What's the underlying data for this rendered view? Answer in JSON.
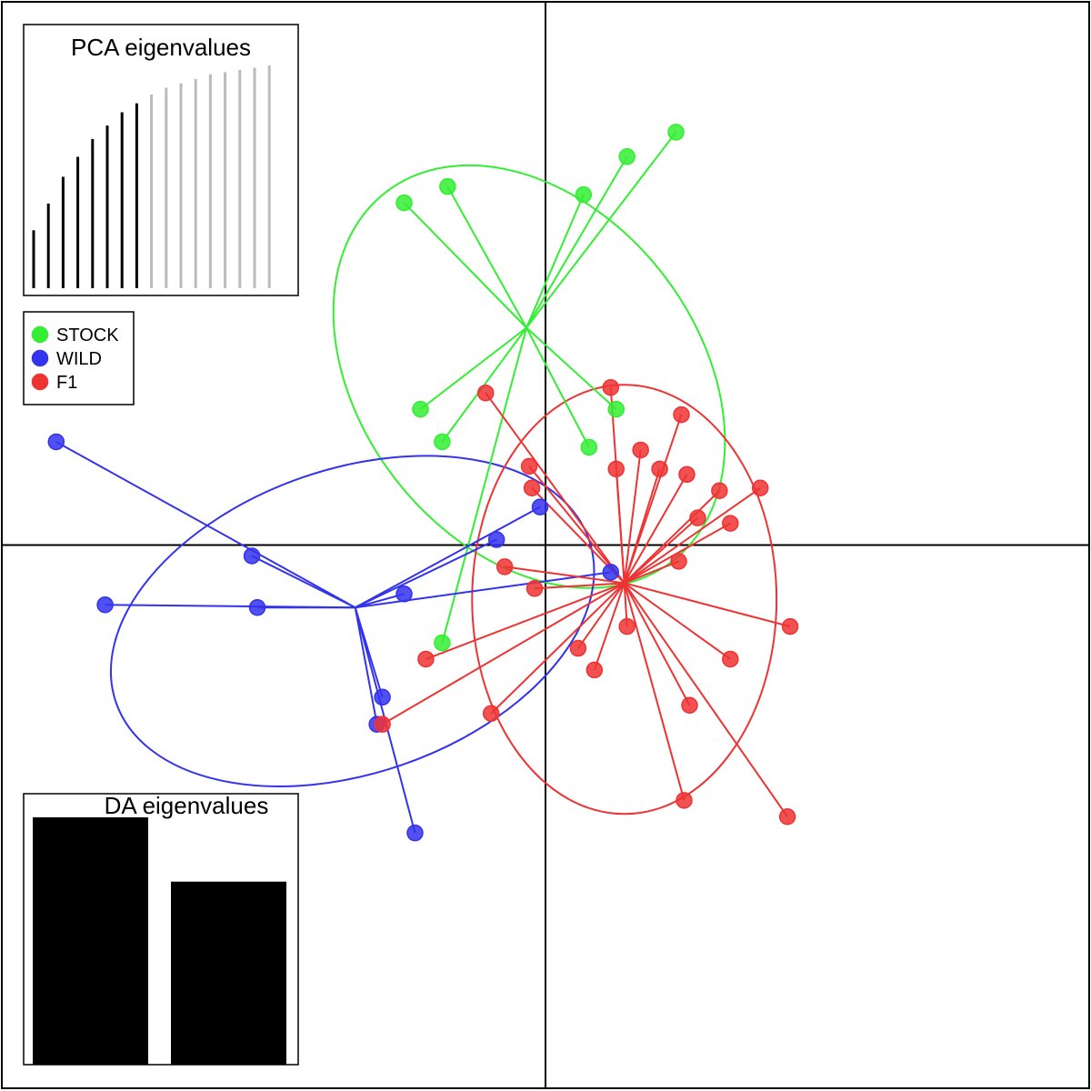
{
  "chart_data": {
    "type": "scatter",
    "axes": {
      "xlim": [
        -10,
        10
      ],
      "ylim": [
        -10,
        10
      ],
      "crosshair": [
        0,
        0
      ]
    },
    "series": [
      {
        "name": "STOCK",
        "color": "#33ee33",
        "centroid": [
          -0.35,
          4.0
        ],
        "ellipse": {
          "center": [
            -0.3,
            3.1
          ],
          "rx": 3.1,
          "ry": 4.3,
          "angle": 38
        },
        "points": [
          [
            -2.6,
            6.3
          ],
          [
            -1.8,
            6.6
          ],
          [
            0.7,
            6.45
          ],
          [
            1.5,
            7.15
          ],
          [
            2.4,
            7.6
          ],
          [
            -2.3,
            2.5
          ],
          [
            -1.9,
            1.9
          ],
          [
            0.8,
            1.8
          ],
          [
            1.3,
            2.5
          ],
          [
            -1.9,
            -1.8
          ]
        ]
      },
      {
        "name": "WILD",
        "color": "#3333ee",
        "centroid": [
          -3.5,
          -1.15
        ],
        "ellipse": {
          "center": [
            -3.55,
            -1.4
          ],
          "rx": 4.6,
          "ry": 2.8,
          "angle": 19
        },
        "points": [
          [
            -9.0,
            1.9
          ],
          [
            -5.4,
            -0.2
          ],
          [
            -8.1,
            -1.1
          ],
          [
            -5.3,
            -1.15
          ],
          [
            -2.6,
            -0.9
          ],
          [
            -0.9,
            0.1
          ],
          [
            -0.1,
            0.7
          ],
          [
            1.2,
            -0.5
          ],
          [
            -3.0,
            -2.8
          ],
          [
            -3.1,
            -3.3
          ],
          [
            -2.4,
            -5.3
          ]
        ]
      },
      {
        "name": "F1",
        "color": "#ee3333",
        "centroid": [
          1.45,
          -0.7
        ],
        "ellipse": {
          "center": [
            1.45,
            -1.0
          ],
          "rx": 2.8,
          "ry": 3.95,
          "angle": 0
        },
        "points": [
          [
            -1.1,
            2.8
          ],
          [
            1.2,
            2.9
          ],
          [
            2.5,
            2.4
          ],
          [
            1.75,
            1.75
          ],
          [
            2.1,
            1.4
          ],
          [
            1.3,
            1.4
          ],
          [
            2.6,
            1.3
          ],
          [
            3.2,
            1.0
          ],
          [
            3.95,
            1.05
          ],
          [
            -0.3,
            1.45
          ],
          [
            -0.25,
            1.05
          ],
          [
            3.4,
            0.4
          ],
          [
            2.8,
            0.5
          ],
          [
            -0.75,
            -0.4
          ],
          [
            -0.2,
            -0.8
          ],
          [
            2.45,
            -0.3
          ],
          [
            1.5,
            -1.5
          ],
          [
            4.5,
            -1.5
          ],
          [
            -2.2,
            -2.1
          ],
          [
            0.6,
            -1.9
          ],
          [
            0.9,
            -2.3
          ],
          [
            3.4,
            -2.1
          ],
          [
            -1.0,
            -3.1
          ],
          [
            2.65,
            -2.95
          ],
          [
            -3.0,
            -3.3
          ],
          [
            2.55,
            -4.7
          ],
          [
            4.45,
            -5.0
          ]
        ]
      }
    ],
    "legend": {
      "position": "top-left",
      "entries": [
        "STOCK",
        "WILD",
        "F1"
      ]
    },
    "insets": [
      {
        "title": "PCA eigenvalues",
        "position": "top-left",
        "type": "bar",
        "retained": 8,
        "values": [
          0.26,
          0.38,
          0.5,
          0.59,
          0.67,
          0.73,
          0.79,
          0.83,
          0.87,
          0.9,
          0.92,
          0.94,
          0.96,
          0.97,
          0.98,
          0.99,
          1.0
        ],
        "retained_color": "#000000",
        "other_color": "#bbbbbb"
      },
      {
        "title": "DA eigenvalues",
        "position": "bottom-left",
        "type": "bar",
        "values": [
          1.0,
          0.74
        ],
        "color": "#000000"
      }
    ]
  }
}
